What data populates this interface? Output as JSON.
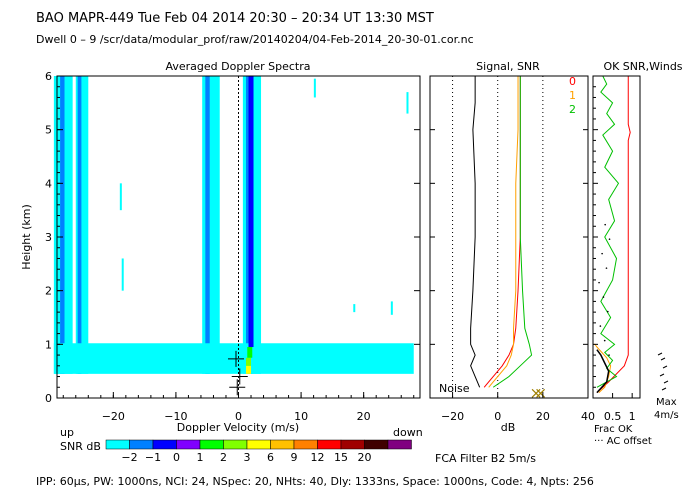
{
  "header": {
    "line1": "BAO  MAPR-449  Tue Feb 04 2014 20:30 – 20:34 UT 13:30 MST",
    "line2": "Dwell  0 –  9   /scr/data/modular_prof/raw/20140204/04-Feb-2014_20-30-01.cor.nc"
  },
  "footer": {
    "params": "IPP:  60μs,   PW: 1000ns,   NCI:  24,   NSpec: 20, NHts: 40,   Dly: 1333ns,   Space: 1000ns,   Code: 4,   Npts: 256",
    "fca": "FCA Filter B2   5m/s"
  },
  "colorbar": {
    "up_label": "up",
    "down_label": "down",
    "title": "SNR dB",
    "ticks": [
      "−2",
      "−1",
      "0",
      "1",
      "2",
      "3",
      "6",
      "9",
      "12",
      "15",
      "20"
    ],
    "colors": [
      "#00ffff",
      "#0080ff",
      "#0000ff",
      "#8000ff",
      "#00ff00",
      "#80ff00",
      "#ffff00",
      "#ffc000",
      "#ff8000",
      "#ff0000",
      "#a00000",
      "#400000",
      "#800080"
    ]
  },
  "chart_data": [
    {
      "type": "heatmap",
      "title": "Averaged Doppler Spectra",
      "xlabel": "Doppler Velocity (m/s)",
      "ylabel": "Height (km)",
      "xlim": [
        -29,
        29
      ],
      "ylim": [
        0,
        6
      ],
      "xticks": [
        "−20",
        "−10",
        "0",
        "10",
        "20"
      ],
      "yticks": [
        "0",
        "1",
        "2",
        "3",
        "4",
        "5",
        "6"
      ],
      "cells": [
        {
          "x": [
            -29.5,
            -28,
            -27,
            -26.5
          ],
          "y0": 0.45,
          "y1": 6.0,
          "snr": -2
        },
        {
          "x": [
            -28.5,
            -27.5,
            -28,
            -27.8
          ],
          "y0": 0.45,
          "y1": 6.0,
          "snr": -1
        },
        {
          "x": [
            -26,
            -25.3,
            -24.5,
            -24.0
          ],
          "y0": 0.45,
          "y1": 6.0,
          "snr": -2
        },
        {
          "x": [
            -25.7,
            -25.0,
            -25.4,
            -25.1
          ],
          "y0": 0.45,
          "y1": 6.0,
          "snr": -1
        },
        {
          "x": [
            -5.8,
            -4.8,
            -3.5,
            -3.0
          ],
          "y0": 0.45,
          "y1": 6.0,
          "snr": -2
        },
        {
          "x": [
            -5.3,
            -4.3,
            -4.9,
            -4.6
          ],
          "y0": 0.45,
          "y1": 6.0,
          "snr": -1
        },
        {
          "x": [
            0.7,
            1.2,
            3.0,
            3.6
          ],
          "y0": 0.45,
          "y1": 6.0,
          "snr": -2
        },
        {
          "x": [
            1.2,
            2.4,
            1.6,
            2.2
          ],
          "y0": 0.45,
          "y1": 6.0,
          "snr": -1
        },
        {
          "x": [
            -29.5,
            -28,
            27,
            28
          ],
          "y0": 0.45,
          "y1": 1.02,
          "snr": -2
        }
      ],
      "core": [
        {
          "v": 1.6,
          "h0": 0.45,
          "h1": 0.6,
          "snr": 3
        },
        {
          "v": 1.6,
          "h0": 0.6,
          "h1": 0.75,
          "snr": 2
        },
        {
          "v": 1.8,
          "h0": 0.75,
          "h1": 0.95,
          "snr": 1
        },
        {
          "v": 2.0,
          "h0": 0.95,
          "h1": 6.0,
          "snr": 0
        }
      ],
      "markers_plus": [
        {
          "v": -0.4,
          "h": 0.73
        },
        {
          "v": 0.2,
          "h": 0.4
        },
        {
          "v": -0.2,
          "h": 0.2
        }
      ],
      "noise_gates": [
        {
          "v": 24.5,
          "h0": 1.55,
          "h1": 1.8
        },
        {
          "v": 18.5,
          "h0": 1.6,
          "h1": 1.75
        },
        {
          "v": 12.2,
          "h0": 5.6,
          "h1": 5.95
        },
        {
          "v": -18.5,
          "h0": 2.0,
          "h1": 2.6
        },
        {
          "v": -18.8,
          "h0": 3.5,
          "h1": 4.0
        },
        {
          "v": 27.0,
          "h0": 5.3,
          "h1": 5.7
        }
      ]
    },
    {
      "type": "line",
      "title": "Signal, SNR",
      "xlabel": "dB",
      "xlim": [
        -30,
        40
      ],
      "ylim": [
        0,
        6
      ],
      "xticks": [
        "−20",
        "0",
        "20",
        "40"
      ],
      "annotation": "Noise",
      "series": [
        {
          "name": "0",
          "color": "#ff0000",
          "x": [
            -6,
            -2,
            2,
            5,
            7,
            8,
            9,
            10,
            10,
            10,
            10,
            10
          ],
          "y": [
            0.2,
            0.4,
            0.6,
            0.8,
            1.0,
            1.3,
            2.0,
            3.0,
            4.0,
            5.0,
            5.5,
            6.0
          ]
        },
        {
          "name": "1",
          "color": "#ffa000",
          "x": [
            -4,
            0,
            4,
            6,
            7,
            7,
            8,
            8,
            8,
            9,
            9,
            9
          ],
          "y": [
            0.2,
            0.4,
            0.6,
            0.8,
            1.0,
            1.3,
            2.0,
            3.0,
            4.0,
            5.0,
            5.5,
            6.0
          ]
        },
        {
          "name": "2",
          "color": "#00c000",
          "x": [
            -2,
            5,
            10,
            15,
            14,
            12,
            11,
            10,
            10,
            10,
            10,
            10
          ],
          "y": [
            0.2,
            0.4,
            0.6,
            0.8,
            1.0,
            1.3,
            2.0,
            3.0,
            4.0,
            5.0,
            5.5,
            6.0
          ]
        },
        {
          "name": "noise",
          "color": "#000000",
          "x": [
            -8,
            -10,
            -12,
            -10,
            -12,
            -12,
            -11,
            -10,
            -10,
            -11,
            -10,
            -10
          ],
          "y": [
            0.2,
            0.4,
            0.6,
            0.8,
            1.0,
            1.3,
            2.0,
            3.0,
            4.0,
            5.0,
            5.5,
            6.0
          ]
        }
      ],
      "markers_x": [
        {
          "x": 17,
          "y": 0.05
        },
        {
          "x": 19,
          "y": 0.05
        }
      ]
    },
    {
      "type": "line",
      "title": "OK SNR,Winds",
      "xlabel": "Frac OK",
      "xlim": [
        0,
        1.2
      ],
      "ylim": [
        0,
        6
      ],
      "xticks": [
        "0.5",
        "1"
      ],
      "legend": [
        "0",
        "1",
        "2"
      ],
      "legend_colors": [
        "#ff0000",
        "#ffa000",
        "#00c000"
      ],
      "note": "··· AC offset",
      "max_label": "Max",
      "max_value": "4m/s",
      "series": [
        {
          "name": "0",
          "color": "#ff0000",
          "x": [
            0.1,
            0.4,
            0.8,
            0.9,
            0.9,
            0.9,
            0.9,
            0.9,
            0.9,
            0.9,
            0.95,
            0.9,
            0.9
          ],
          "y": [
            0.1,
            0.3,
            0.6,
            0.8,
            1.2,
            2.0,
            3.0,
            4.0,
            4.5,
            4.8,
            4.95,
            5.1,
            6.0
          ]
        },
        {
          "name": "1",
          "color": "#ffa000",
          "x": [
            0.15,
            0.3,
            0.4,
            0.45,
            0.35,
            0.1,
            0.05,
            0.02
          ],
          "y": [
            0.1,
            0.2,
            0.4,
            0.6,
            0.75,
            0.95,
            1.0,
            1.0
          ]
        },
        {
          "name": "2",
          "color": "#00c000",
          "x": [
            0.1,
            0.6,
            0.35,
            0.5,
            0.3,
            0.55,
            0.2,
            0.45,
            0.2,
            0.5,
            0.6,
            0.3,
            0.55,
            0.4,
            0.65,
            0.3,
            0.5,
            0.25,
            0.55,
            0.35,
            0.5,
            0.2,
            0.35,
            0.25
          ],
          "y": [
            0.2,
            0.4,
            0.55,
            0.7,
            0.85,
            1.0,
            1.2,
            1.5,
            1.8,
            2.2,
            2.6,
            3.0,
            3.3,
            3.7,
            4.0,
            4.3,
            4.6,
            4.9,
            5.1,
            5.3,
            5.5,
            5.7,
            5.85,
            6.0
          ]
        },
        {
          "name": "ac",
          "color": "#000000",
          "x": [
            0.1,
            0.35,
            0.4,
            0.3,
            0.2,
            0.1
          ],
          "y": [
            0.1,
            0.3,
            0.5,
            0.65,
            0.8,
            0.9
          ]
        }
      ]
    }
  ]
}
